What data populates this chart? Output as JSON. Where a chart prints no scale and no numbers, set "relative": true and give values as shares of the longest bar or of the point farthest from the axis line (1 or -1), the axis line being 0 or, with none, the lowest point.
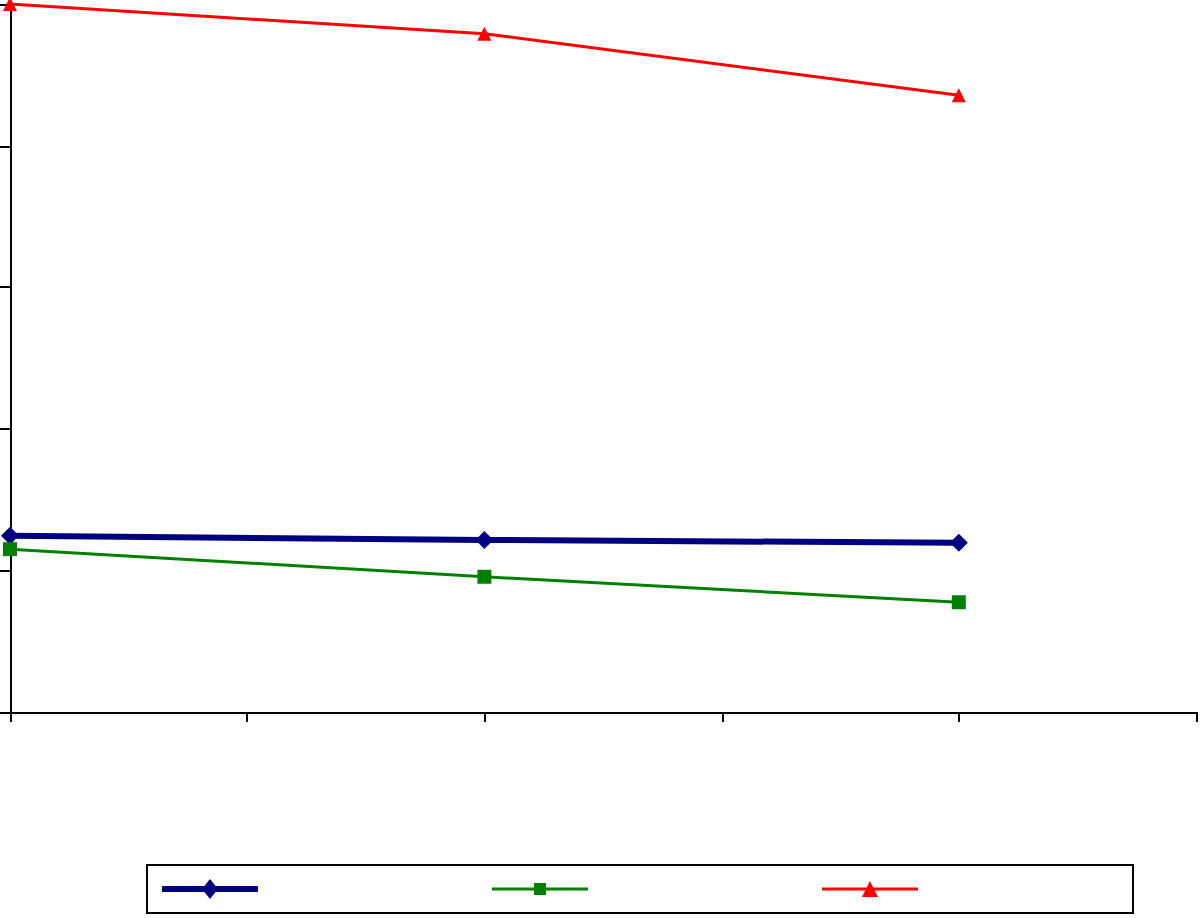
{
  "chart_data": {
    "type": "line",
    "relative": true,
    "categories": [
      null,
      null,
      null,
      null,
      null,
      null
    ],
    "grid": false,
    "series": [
      {
        "color": "#000080",
        "marker": "diamond",
        "values": [
          0.249,
          null,
          0.243,
          null,
          0.239,
          null
        ]
      },
      {
        "color": "#008000",
        "marker": "square",
        "values": [
          0.23,
          null,
          0.191,
          null,
          0.155,
          null
        ]
      },
      {
        "color": "#ff0000",
        "marker": "triangle",
        "values": [
          1,
          null,
          0.958,
          null,
          0.871,
          null
        ]
      }
    ]
  }
}
